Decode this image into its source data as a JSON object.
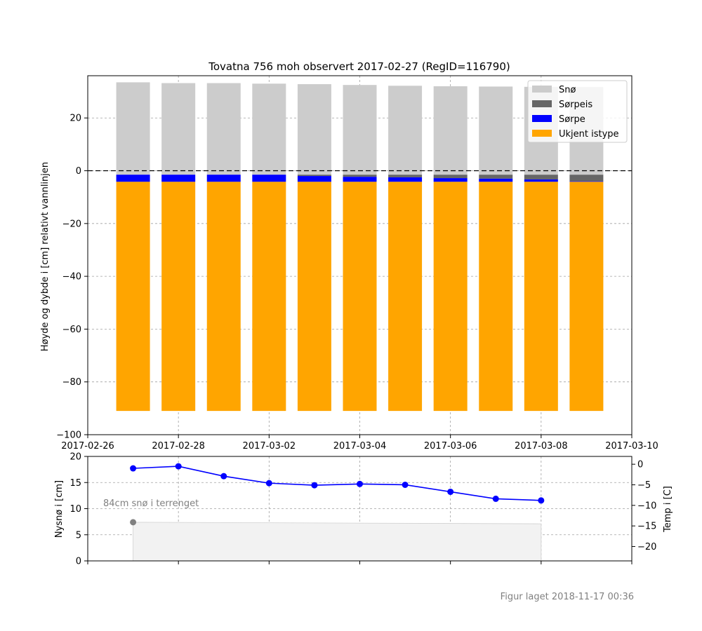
{
  "chart_data": [
    {
      "type": "bar",
      "title": "Tovatna 756 moh observert 2017-02-27 (RegID=116790)",
      "xlabel": "",
      "ylabel": "Høyde og dybde i [cm] relativt vannlinjen",
      "xlim": [
        "2017-02-26",
        "2017-03-10"
      ],
      "ylim": [
        -100,
        36
      ],
      "xticks": [
        "2017-02-26",
        "2017-02-28",
        "2017-03-02",
        "2017-03-04",
        "2017-03-06",
        "2017-03-08",
        "2017-03-10"
      ],
      "yticks": [
        -100,
        -80,
        -60,
        -40,
        -20,
        0,
        20
      ],
      "grid": true,
      "legend": "top-right",
      "categories": [
        "2017-02-27",
        "2017-02-28",
        "2017-03-01",
        "2017-03-02",
        "2017-03-03",
        "2017-03-04",
        "2017-03-05",
        "2017-03-06",
        "2017-03-07",
        "2017-03-08",
        "2017-03-09"
      ],
      "series": [
        {
          "name": "Snø",
          "color": "#cccccc",
          "bottom": [
            -1.5,
            -1.5,
            -1.5,
            -1.5,
            -1.5,
            -1.5,
            -1.5,
            -1.5,
            -1.5,
            -1.5,
            -1.5
          ],
          "top": [
            33.5,
            33.2,
            33.2,
            33.0,
            32.8,
            32.5,
            32.2,
            32.0,
            31.9,
            31.8,
            31.7
          ]
        },
        {
          "name": "Sørpeis",
          "color": "#666666",
          "bottom": [
            -1.5,
            -1.5,
            -1.5,
            -1.5,
            -2.0,
            -2.3,
            -2.5,
            -2.8,
            -3.0,
            -3.3,
            -4.0
          ],
          "top": [
            -1.5,
            -1.5,
            -1.5,
            -1.5,
            -1.5,
            -1.5,
            -1.5,
            -1.5,
            -1.5,
            -1.5,
            -1.5
          ]
        },
        {
          "name": "Sørpe",
          "color": "#0000ff",
          "bottom": [
            -4.2,
            -4.2,
            -4.2,
            -4.2,
            -4.2,
            -4.2,
            -4.2,
            -4.2,
            -4.2,
            -4.2,
            -4.2
          ],
          "top": [
            -1.5,
            -1.5,
            -1.5,
            -1.5,
            -2.0,
            -2.3,
            -2.5,
            -2.8,
            -3.0,
            -3.3,
            -4.0
          ]
        },
        {
          "name": "Ukjent istype",
          "color": "#ffa500",
          "bottom": [
            -91,
            -91,
            -91,
            -91,
            -91,
            -91,
            -91,
            -91,
            -91,
            -91,
            -91
          ],
          "top": [
            -4.2,
            -4.2,
            -4.2,
            -4.2,
            -4.2,
            -4.2,
            -4.2,
            -4.2,
            -4.2,
            -4.2,
            -4.2
          ]
        }
      ]
    },
    {
      "type": "line",
      "title": "",
      "xlabel": "",
      "ylabel": "Nysnø i [cm]",
      "ylabel_right": "Temp i [C]",
      "xlim": [
        "2017-02-26",
        "2017-03-10"
      ],
      "ylim": [
        0,
        20
      ],
      "ylim_right": [
        -23.5,
        1.9
      ],
      "yticks": [
        0,
        5,
        10,
        15,
        20
      ],
      "yticks_right": [
        0,
        -5,
        -10,
        -15,
        -20
      ],
      "grid": true,
      "annotation": "84cm snø i terrenget",
      "series": [
        {
          "name": "Temp",
          "axis": "right",
          "color": "#0000ff",
          "x": [
            "2017-02-27",
            "2017-02-28",
            "2017-03-01",
            "2017-03-02",
            "2017-03-03",
            "2017-03-04",
            "2017-03-05",
            "2017-03-06",
            "2017-03-07",
            "2017-03-08"
          ],
          "y": [
            -1.0,
            -0.5,
            -2.9,
            -4.6,
            -5.1,
            -4.8,
            -5.0,
            -6.7,
            -8.4,
            -8.8
          ]
        },
        {
          "name": "Snø i terrenget",
          "axis": "left",
          "color": "#f2f2f2",
          "x": [
            "2017-02-27",
            "2017-03-08"
          ],
          "y": [
            7.4,
            7.1
          ]
        },
        {
          "name": "Nysnø",
          "axis": "left",
          "color": "#808080",
          "x": [
            "2017-02-27"
          ],
          "y": [
            7.4
          ]
        }
      ]
    }
  ],
  "footer": "Figur laget 2018-11-17 00:36"
}
